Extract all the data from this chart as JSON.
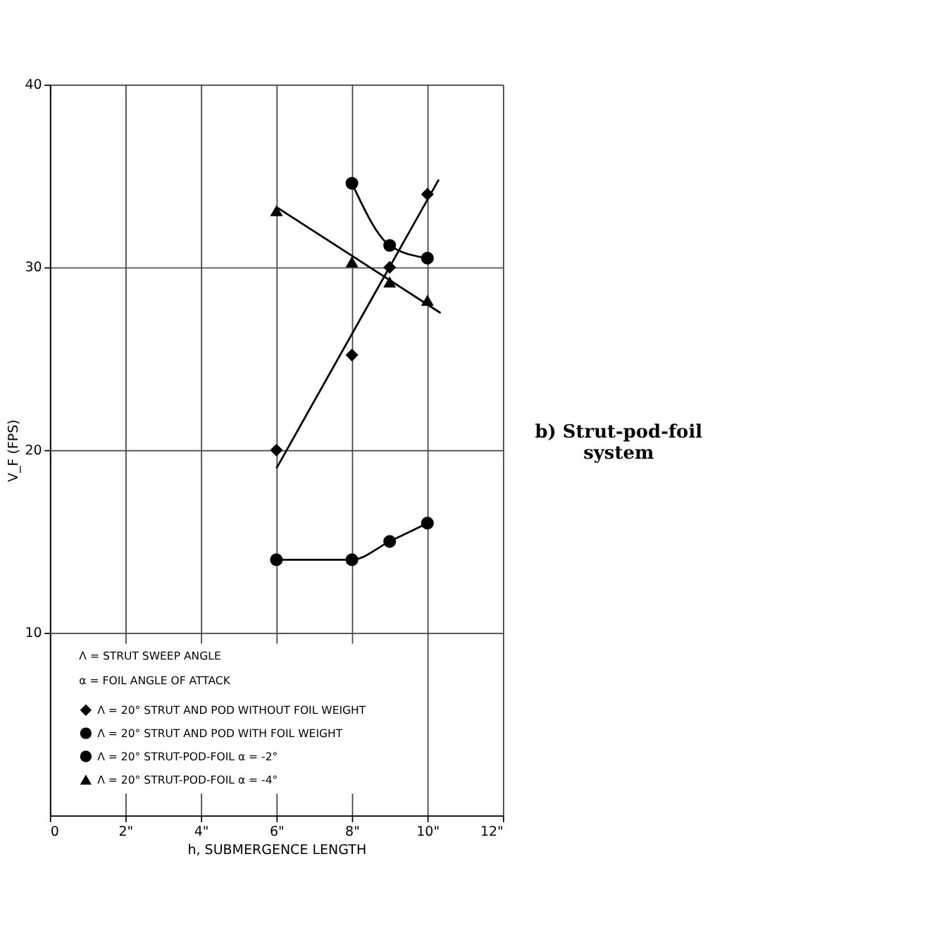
{
  "chart_data": {
    "type": "scatter",
    "title": "b) Strut-pod-foil\nsystem",
    "xlabel": "h, SUBMERGENCE LENGTH",
    "ylabel": "V_F (FPS)",
    "xlim": [
      0,
      12
    ],
    "xticks": [
      0,
      {
        "value": 2,
        "label": "2\""
      },
      {
        "value": 4,
        "label": "4\""
      },
      {
        "value": 6,
        "label": "6\""
      },
      {
        "value": 8,
        "label": "8\""
      },
      {
        "value": 10,
        "label": "10\""
      },
      {
        "value": 12,
        "label": "12\""
      }
    ],
    "ylim": [
      0,
      40
    ],
    "yticks": [
      10,
      20,
      30,
      40
    ],
    "grid": true,
    "legend": "bottom left",
    "annotations": [
      "Λ = STRUT SWEEP ANGLE",
      "α = FOIL ANGLE OF ATTACK"
    ],
    "series": [
      {
        "name": "Λ = 20° STRUT AND POD WITHOUT FOIL WEIGHT",
        "marker": "diamond",
        "color": "#000000",
        "x": [
          6,
          8,
          9,
          10
        ],
        "values": [
          20,
          25.2,
          30,
          34
        ]
      },
      {
        "name": "Λ = 20° STRUT AND POD WITH FOIL WEIGHT",
        "type": "line",
        "marker": "circle",
        "color": "#000000",
        "x": [
          6,
          8,
          9,
          10
        ],
        "values": [
          14,
          14,
          15,
          16
        ]
      },
      {
        "name": "Λ = 20° STRUT-POD-FOIL α = -2°",
        "type": "line",
        "marker": "circle",
        "color": "#000000",
        "x": [
          8,
          9,
          10
        ],
        "values": [
          34.6,
          31.2,
          30.5
        ]
      },
      {
        "name": "Λ = 20° STRUT-POD-FOIL α = -4°",
        "marker": "triangle",
        "color": "#000000",
        "x": [
          6,
          8,
          9,
          10
        ],
        "values": [
          33.1,
          30.3,
          29.2,
          28.2
        ]
      },
      {
        "type": "line",
        "marker": "none",
        "color": "#000000",
        "x": [
          6,
          10.3
        ],
        "values": [
          19,
          34.8
        ]
      },
      {
        "type": "line",
        "marker": "none",
        "color": "#000000",
        "x": [
          6,
          10.35
        ],
        "values": [
          33.3,
          27.5
        ]
      }
    ]
  }
}
